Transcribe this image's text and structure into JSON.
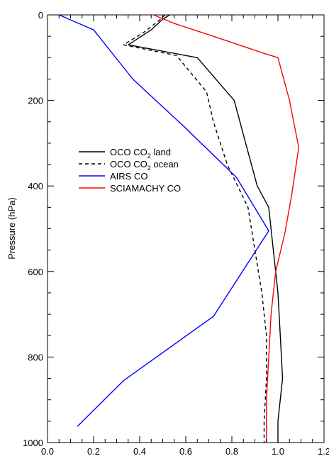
{
  "chart_data": {
    "type": "line",
    "title": "",
    "xlabel": "",
    "ylabel": "Pressure (hPa)",
    "xlim": [
      0.0,
      1.2
    ],
    "ylim": [
      0,
      1000
    ],
    "y_inverted": true,
    "grid": false,
    "legend_position": "center-left",
    "x_ticks": [
      0.0,
      0.2,
      0.4,
      0.6,
      0.8,
      1.0,
      1.2
    ],
    "x_tick_labels": [
      "0.0",
      "0.2",
      "0.4",
      "0.6",
      "0.8",
      "1.0",
      "1.2"
    ],
    "y_ticks": [
      0,
      200,
      400,
      600,
      800,
      1000
    ],
    "y_tick_labels": [
      "0",
      "200",
      "400",
      "600",
      "800",
      "1000"
    ],
    "series": [
      {
        "name": "OCO CO2 land",
        "legend_main": "OCO CO",
        "legend_sub": "2",
        "legend_tail": " land",
        "color": "#000000",
        "dash": "solid",
        "points": [
          [
            0.53,
            0
          ],
          [
            0.5,
            10
          ],
          [
            0.45,
            35
          ],
          [
            0.35,
            70
          ],
          [
            0.65,
            100
          ],
          [
            0.81,
            200
          ],
          [
            0.86,
            300
          ],
          [
            0.91,
            400
          ],
          [
            0.96,
            450
          ],
          [
            0.98,
            550
          ],
          [
            1.0,
            650
          ],
          [
            1.01,
            750
          ],
          [
            1.02,
            850
          ],
          [
            1.0,
            950
          ],
          [
            1.0,
            1000
          ]
        ]
      },
      {
        "name": "OCO CO2 ocean",
        "legend_main": "OCO CO",
        "legend_sub": "2",
        "legend_tail": " ocean",
        "color": "#000000",
        "dash": "dashed",
        "points": [
          [
            0.51,
            0
          ],
          [
            0.48,
            15
          ],
          [
            0.42,
            40
          ],
          [
            0.33,
            70
          ],
          [
            0.56,
            95
          ],
          [
            0.69,
            180
          ],
          [
            0.72,
            250
          ],
          [
            0.78,
            350
          ],
          [
            0.87,
            450
          ],
          [
            0.9,
            550
          ],
          [
            0.93,
            650
          ],
          [
            0.95,
            750
          ],
          [
            0.95,
            850
          ],
          [
            0.94,
            950
          ],
          [
            0.94,
            1000
          ]
        ]
      },
      {
        "name": "AIRS CO",
        "legend_main": "AIRS CO",
        "legend_sub": "",
        "legend_tail": "",
        "color": "#0000ff",
        "dash": "solid",
        "points": [
          [
            0.05,
            0
          ],
          [
            0.2,
            35
          ],
          [
            0.37,
            150
          ],
          [
            0.59,
            260
          ],
          [
            0.82,
            380
          ],
          [
            0.96,
            505
          ],
          [
            0.72,
            705
          ],
          [
            0.33,
            855
          ],
          [
            0.13,
            962
          ]
        ]
      },
      {
        "name": "SCIAMACHY CO",
        "legend_main": "SCIAMACHY CO",
        "legend_sub": "",
        "legend_tail": "",
        "color": "#ff0000",
        "dash": "solid",
        "points": [
          [
            0.46,
            0
          ],
          [
            0.55,
            20
          ],
          [
            0.72,
            50
          ],
          [
            0.94,
            90
          ],
          [
            1.0,
            100
          ],
          [
            1.05,
            200
          ],
          [
            1.09,
            310
          ],
          [
            1.06,
            420
          ],
          [
            1.03,
            510
          ],
          [
            0.99,
            600
          ],
          [
            0.97,
            700
          ],
          [
            0.96,
            800
          ],
          [
            0.95,
            900
          ],
          [
            0.95,
            1000
          ]
        ]
      }
    ]
  }
}
